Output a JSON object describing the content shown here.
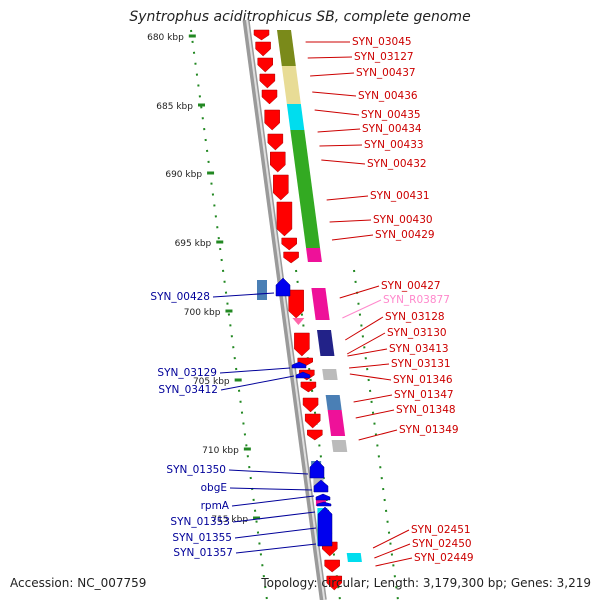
{
  "title": "Syntrophus aciditrophicus SB, complete genome",
  "accession": "Accession: NC_007759",
  "topology": "Topology: circular; Length: 3,179,300 bp; Genes: 3,219",
  "colors": {
    "forward_gene": "#ff0000",
    "reverse_gene": "#0000ee",
    "rna_gene": "#ff66aa",
    "forward_label": "#cc0000",
    "reverse_label": "#000099",
    "rna_label": "#ff88cc",
    "backbone": "#9a9a9a",
    "tick_green": "#228822",
    "cog_olive": "#7a8a1a",
    "cog_khaki": "#e8dc96",
    "cog_cyan": "#00ddee",
    "cog_green": "#33aa22",
    "cog_magenta": "#ee1199",
    "cog_steel": "#4a7fb5",
    "cog_grey": "#bbbbbb",
    "cog_navy": "#222288"
  },
  "ruler_ticks": [
    "680 kbp",
    "685 kbp",
    "690 kbp",
    "695 kbp",
    "700 kbp",
    "705 kbp",
    "710 kbp",
    "715 kbp"
  ],
  "forward_genes": [
    {
      "label": "SYN_03045",
      "category": "cog_olive"
    },
    {
      "label": "SYN_03127",
      "category": "cog_khaki"
    },
    {
      "label": "SYN_00437",
      "category": "cog_khaki"
    },
    {
      "label": "SYN_00436",
      "category": "cog_cyan"
    },
    {
      "label": "SYN_00435",
      "category": "cog_green"
    },
    {
      "label": "SYN_00434",
      "category": "cog_green"
    },
    {
      "label": "SYN_00433",
      "category": "cog_green"
    },
    {
      "label": "SYN_00432",
      "category": "cog_green"
    },
    {
      "label": "SYN_00431",
      "category": "cog_green"
    },
    {
      "label": "SYN_00430",
      "category": "cog_green"
    },
    {
      "label": "SYN_00429",
      "category": "cog_magenta"
    },
    {
      "label": "SYN_00427",
      "category": "cog_magenta"
    },
    {
      "label": "SYN_R03877",
      "category": "rna"
    },
    {
      "label": "SYN_03128",
      "category": "cog_navy"
    },
    {
      "label": "SYN_03130",
      "category": "cog_navy"
    },
    {
      "label": "SYN_03413",
      "category": "none"
    },
    {
      "label": "SYN_03131",
      "category": "none"
    },
    {
      "label": "SYN_01346",
      "category": "cog_grey"
    },
    {
      "label": "SYN_01347",
      "category": "cog_steel"
    },
    {
      "label": "SYN_01348",
      "category": "cog_magenta"
    },
    {
      "label": "SYN_01349",
      "category": "cog_grey"
    },
    {
      "label": "SYN_02451",
      "category": "cog_cyan"
    },
    {
      "label": "SYN_02450",
      "category": "none"
    },
    {
      "label": "SYN_02449",
      "category": "none"
    }
  ],
  "reverse_genes": [
    {
      "label": "SYN_00428",
      "category": "cog_steel"
    },
    {
      "label": "SYN_03129",
      "category": "none"
    },
    {
      "label": "SYN_03412",
      "category": "none"
    },
    {
      "label": "SYN_01350",
      "category": "cog_steel"
    },
    {
      "label": "obgE",
      "category": "cog_grey"
    },
    {
      "label": "rpmA",
      "category": "cog_magenta"
    },
    {
      "label": "SYN_01353",
      "category": "cog_grey"
    },
    {
      "label": "SYN_01355",
      "category": "cog_cyan"
    },
    {
      "label": "SYN_01357",
      "category": "cog_cyan"
    }
  ]
}
